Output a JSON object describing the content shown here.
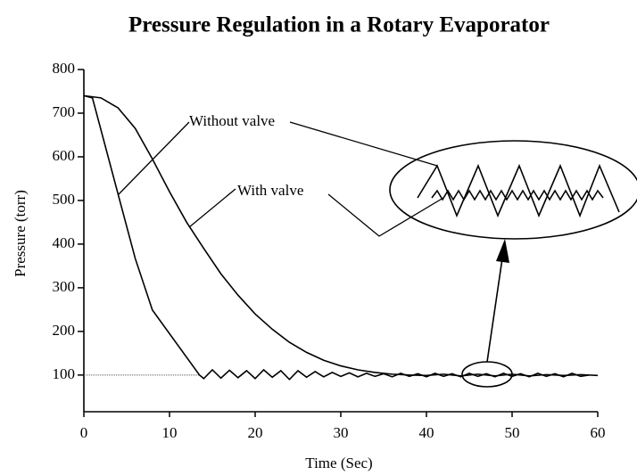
{
  "chart_data": {
    "type": "line",
    "title": "Pressure Regulation in a Rotary Evaporator",
    "x_label": "Time (Sec)",
    "y_label": "Pressure (torr)",
    "annotations": [
      "Without valve",
      "With valve"
    ],
    "xlim": [
      0,
      60
    ],
    "xticks": [
      0,
      10,
      20,
      30,
      40,
      50,
      60
    ],
    "ylim": [
      16,
      800
    ],
    "yticks": [
      100,
      200,
      300,
      400,
      500,
      600,
      700,
      800
    ],
    "reference_line": 100,
    "series": [
      {
        "name": "Without valve",
        "color": "#000000",
        "x": [
          0,
          1,
          4,
          6,
          8,
          13.5,
          14,
          15,
          16,
          17,
          18,
          19,
          20,
          21,
          22,
          23,
          24,
          25,
          26,
          27,
          28,
          29,
          30,
          31,
          32,
          33,
          34,
          35,
          36,
          37,
          38,
          39,
          40,
          41,
          42,
          43,
          44,
          45,
          46,
          47,
          48,
          49,
          50,
          51,
          52,
          53,
          54,
          55,
          56,
          57,
          58,
          59
        ],
        "values": [
          740,
          735,
          514,
          367,
          249,
          100,
          92,
          112,
          93,
          111,
          94,
          110,
          92,
          112,
          95,
          110,
          90,
          110,
          95,
          108,
          96,
          106,
          97,
          105,
          96,
          104,
          97,
          103,
          96,
          104,
          97,
          103,
          96,
          104,
          97,
          103,
          96,
          104,
          97,
          103,
          96,
          104,
          97,
          103,
          96,
          104,
          97,
          103,
          96,
          104,
          97,
          100
        ]
      },
      {
        "name": "With valve",
        "color": "#000000",
        "x": [
          0,
          2,
          4,
          6,
          8,
          10,
          12,
          14,
          16,
          18,
          20,
          22,
          24,
          26,
          28,
          30,
          32,
          34,
          36,
          38,
          40,
          42,
          44,
          46,
          48,
          50,
          52,
          54,
          56,
          58,
          60
        ],
        "values": [
          740,
          735,
          712,
          665,
          595,
          520,
          450,
          390,
          332,
          283,
          240,
          205,
          175,
          152,
          134,
          121,
          112,
          106,
          102,
          100,
          99,
          102,
          98,
          102,
          98,
          102,
          98,
          101,
          99,
          101,
          99
        ]
      }
    ]
  }
}
